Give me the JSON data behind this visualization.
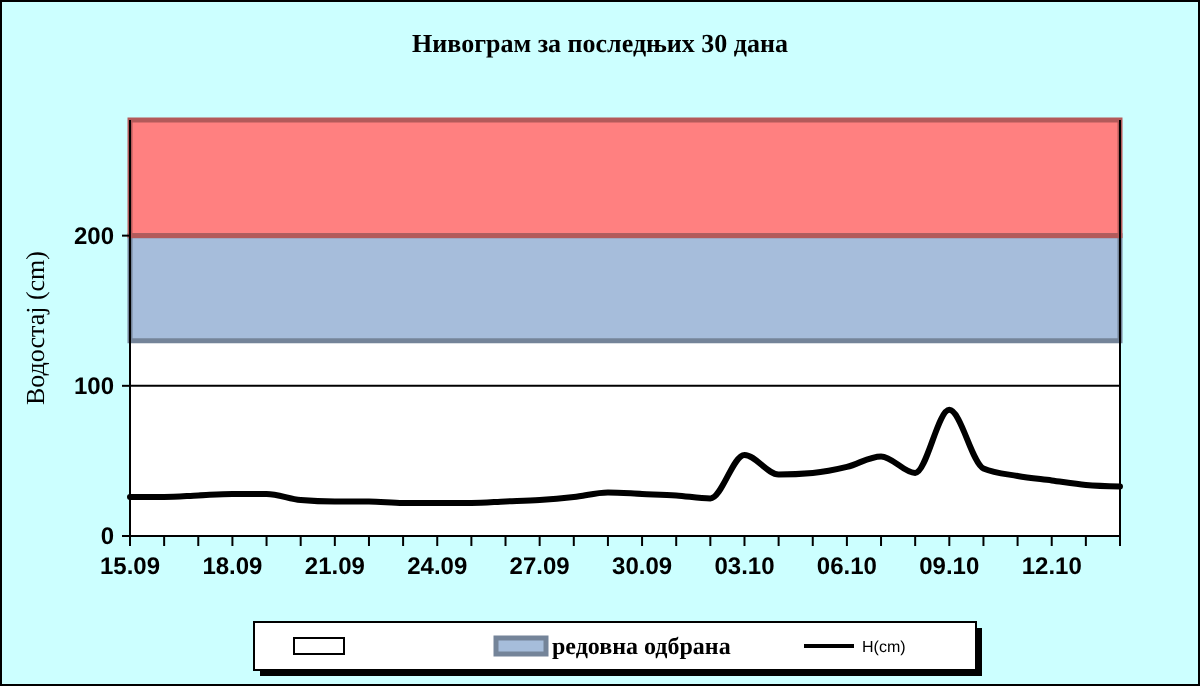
{
  "chart_data": {
    "type": "line",
    "title": "Нивограм за последњих 30 дана",
    "ylabel": "Водостај (cm)",
    "x": [
      "--09-15",
      "--09-16",
      "--09-17",
      "--09-18",
      "--09-19",
      "--09-20",
      "--09-21",
      "--09-22",
      "--09-23",
      "--09-24",
      "--09-25",
      "--09-26",
      "--09-27",
      "--09-28",
      "--09-29",
      "--09-30",
      "--10-01",
      "--10-02",
      "--10-03",
      "--10-04",
      "--10-05",
      "--10-06",
      "--10-07",
      "--10-08",
      "--10-09",
      "--10-10",
      "--10-11",
      "--10-12",
      "--10-13",
      "--10-14"
    ],
    "series": [
      {
        "name": "H(cm)",
        "color": "#000000",
        "values": [
          26,
          26,
          27,
          28,
          28,
          24,
          23,
          23,
          22,
          22,
          22,
          23,
          24,
          26,
          29,
          28,
          27,
          25,
          54,
          41,
          42,
          46,
          53,
          42,
          84,
          45,
          40,
          37,
          34,
          33
        ]
      }
    ],
    "xlim": [
      "--09-15",
      "--10-14"
    ],
    "xticks": [
      {
        "value": "--09-15",
        "label": "15.09"
      },
      {
        "value": "--09-16",
        "label": null
      },
      {
        "value": "--09-17",
        "label": null
      },
      {
        "value": "--09-18",
        "label": "18.09"
      },
      {
        "value": "--09-19",
        "label": null
      },
      {
        "value": "--09-20",
        "label": null
      },
      {
        "value": "--09-21",
        "label": "21.09"
      },
      {
        "value": "--09-22",
        "label": null
      },
      {
        "value": "--09-23",
        "label": null
      },
      {
        "value": "--09-24",
        "label": "24.09"
      },
      {
        "value": "--09-25",
        "label": null
      },
      {
        "value": "--09-26",
        "label": null
      },
      {
        "value": "--09-27",
        "label": "27.09"
      },
      {
        "value": "--09-28",
        "label": null
      },
      {
        "value": "--09-29",
        "label": null
      },
      {
        "value": "--09-30",
        "label": "30.09"
      },
      {
        "value": "--10-01",
        "label": null
      },
      {
        "value": "--10-02",
        "label": null
      },
      {
        "value": "--10-03",
        "label": "03.10"
      },
      {
        "value": "--10-04",
        "label": null
      },
      {
        "value": "--10-05",
        "label": null
      },
      {
        "value": "--10-06",
        "label": "06.10"
      },
      {
        "value": "--10-07",
        "label": null
      },
      {
        "value": "--10-08",
        "label": null
      },
      {
        "value": "--10-09",
        "label": "09.10"
      },
      {
        "value": "--10-10",
        "label": null
      },
      {
        "value": "--10-11",
        "label": null
      },
      {
        "value": "--10-12",
        "label": "12.10"
      },
      {
        "value": "--10-13",
        "label": null
      },
      {
        "value": "--10-14",
        "label": null
      }
    ],
    "ylim": [
      0,
      277
    ],
    "yticks": [
      0,
      100,
      200
    ],
    "grid": "y",
    "legend": "bottom",
    "line_style": "solid",
    "marker": "none",
    "bands": [
      {
        "axis": "y",
        "from": 130,
        "to": 200,
        "label": "редовна одбрана",
        "color": "#a6bddb"
      },
      {
        "axis": "y",
        "from": 200,
        "to": 277,
        "color": "#ff8080"
      }
    ]
  }
}
